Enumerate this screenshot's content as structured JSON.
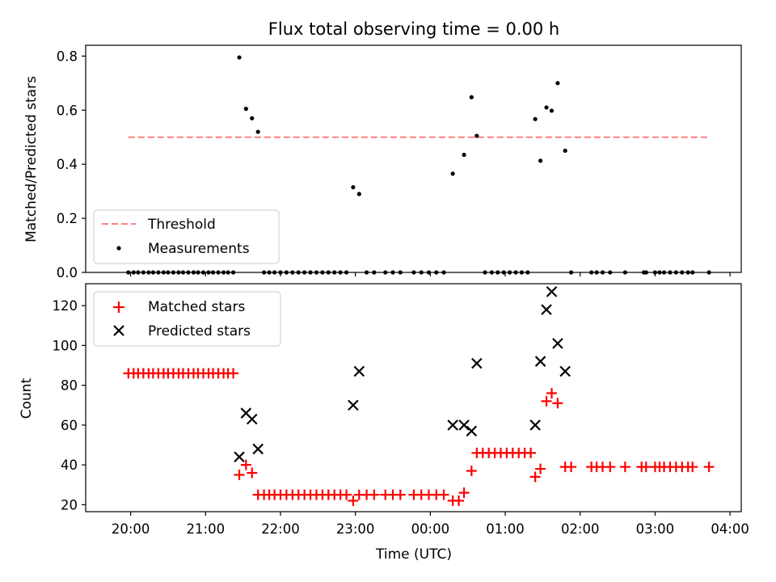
{
  "title": "Flux total observing time = 0.00 h",
  "chart_data": [
    {
      "type": "scatter",
      "ylabel": "Matched/Predicted stars",
      "xlim": [
        -0.6,
        8.15
      ],
      "ylim": [
        0,
        0.84
      ],
      "x_ticks": [
        0,
        1,
        2,
        3,
        4,
        5,
        6,
        7,
        8
      ],
      "y_ticks": [
        {
          "value": 0.0,
          "label": "0.0"
        },
        {
          "value": 0.2,
          "label": "0.2"
        },
        {
          "value": 0.4,
          "label": "0.4"
        },
        {
          "value": 0.6,
          "label": "0.6"
        },
        {
          "value": 0.8,
          "label": "0.8"
        }
      ],
      "legend_position": "lower-left",
      "threshold": {
        "name": "Threshold",
        "value": 0.5,
        "x_range": [
          -0.03,
          7.72
        ],
        "color": "#ff7f7f",
        "style": "dashed"
      },
      "series": [
        {
          "name": "Measurements",
          "color": "#000000",
          "marker": "dot",
          "points": [
            [
              -0.03,
              0
            ],
            [
              0.04,
              0
            ],
            [
              0.1,
              0
            ],
            [
              0.17,
              0
            ],
            [
              0.24,
              0
            ],
            [
              0.3,
              0
            ],
            [
              0.37,
              0
            ],
            [
              0.44,
              0
            ],
            [
              0.5,
              0
            ],
            [
              0.57,
              0
            ],
            [
              0.64,
              0
            ],
            [
              0.7,
              0
            ],
            [
              0.77,
              0
            ],
            [
              0.84,
              0
            ],
            [
              0.9,
              0
            ],
            [
              0.97,
              0
            ],
            [
              1.04,
              0
            ],
            [
              1.1,
              0
            ],
            [
              1.17,
              0
            ],
            [
              1.24,
              0
            ],
            [
              1.3,
              0
            ],
            [
              1.37,
              0
            ],
            [
              1.45,
              0.795
            ],
            [
              1.54,
              0.605
            ],
            [
              1.62,
              0.57
            ],
            [
              1.7,
              0.52
            ],
            [
              1.78,
              0
            ],
            [
              1.85,
              0
            ],
            [
              1.92,
              0
            ],
            [
              2.0,
              0
            ],
            [
              2.08,
              0
            ],
            [
              2.16,
              0
            ],
            [
              2.24,
              0
            ],
            [
              2.32,
              0
            ],
            [
              2.4,
              0
            ],
            [
              2.48,
              0
            ],
            [
              2.56,
              0
            ],
            [
              2.64,
              0
            ],
            [
              2.72,
              0
            ],
            [
              2.8,
              0
            ],
            [
              2.88,
              0
            ],
            [
              2.97,
              0.315
            ],
            [
              3.05,
              0.29
            ],
            [
              3.15,
              0
            ],
            [
              3.25,
              0
            ],
            [
              3.4,
              0
            ],
            [
              3.5,
              0
            ],
            [
              3.6,
              0
            ],
            [
              3.78,
              0
            ],
            [
              3.88,
              0
            ],
            [
              3.98,
              0
            ],
            [
              4.08,
              0
            ],
            [
              4.18,
              0
            ],
            [
              4.3,
              0.365
            ],
            [
              4.45,
              0.435
            ],
            [
              4.55,
              0.648
            ],
            [
              4.62,
              0.505
            ],
            [
              4.73,
              0
            ],
            [
              4.82,
              0
            ],
            [
              4.9,
              0
            ],
            [
              4.98,
              0
            ],
            [
              5.06,
              0
            ],
            [
              5.14,
              0
            ],
            [
              5.22,
              0
            ],
            [
              5.3,
              0
            ],
            [
              5.4,
              0.567
            ],
            [
              5.47,
              0.413
            ],
            [
              5.55,
              0.61
            ],
            [
              5.62,
              0.598
            ],
            [
              5.7,
              0.7
            ],
            [
              5.8,
              0.45
            ],
            [
              5.88,
              0
            ],
            [
              6.15,
              0
            ],
            [
              6.22,
              0
            ],
            [
              6.3,
              0
            ],
            [
              6.4,
              0
            ],
            [
              6.6,
              0
            ],
            [
              6.85,
              0
            ],
            [
              6.88,
              0
            ],
            [
              7.0,
              0
            ],
            [
              7.06,
              0
            ],
            [
              7.12,
              0
            ],
            [
              7.2,
              0
            ],
            [
              7.28,
              0
            ],
            [
              7.36,
              0
            ],
            [
              7.44,
              0
            ],
            [
              7.5,
              0
            ],
            [
              7.72,
              0
            ]
          ]
        }
      ]
    },
    {
      "type": "scatter",
      "xlabel": "Time (UTC)",
      "ylabel": "Count",
      "xlim": [
        -0.6,
        8.15
      ],
      "ylim": [
        16.5,
        131
      ],
      "x_ticks": [
        {
          "value": 0,
          "label": "20:00"
        },
        {
          "value": 1,
          "label": "21:00"
        },
        {
          "value": 2,
          "label": "22:00"
        },
        {
          "value": 3,
          "label": "23:00"
        },
        {
          "value": 4,
          "label": "00:00"
        },
        {
          "value": 5,
          "label": "01:00"
        },
        {
          "value": 6,
          "label": "02:00"
        },
        {
          "value": 7,
          "label": "03:00"
        },
        {
          "value": 8,
          "label": "04:00"
        }
      ],
      "y_ticks": [
        {
          "value": 20,
          "label": "20"
        },
        {
          "value": 40,
          "label": "40"
        },
        {
          "value": 60,
          "label": "60"
        },
        {
          "value": 80,
          "label": "80"
        },
        {
          "value": 100,
          "label": "100"
        },
        {
          "value": 120,
          "label": "120"
        }
      ],
      "legend_position": "upper-left",
      "series": [
        {
          "name": "Matched stars",
          "color": "#ff0000",
          "marker": "plus",
          "points": [
            [
              -0.03,
              86
            ],
            [
              0.04,
              86
            ],
            [
              0.1,
              86
            ],
            [
              0.17,
              86
            ],
            [
              0.24,
              86
            ],
            [
              0.3,
              86
            ],
            [
              0.37,
              86
            ],
            [
              0.44,
              86
            ],
            [
              0.5,
              86
            ],
            [
              0.57,
              86
            ],
            [
              0.64,
              86
            ],
            [
              0.7,
              86
            ],
            [
              0.77,
              86
            ],
            [
              0.84,
              86
            ],
            [
              0.9,
              86
            ],
            [
              0.97,
              86
            ],
            [
              1.04,
              86
            ],
            [
              1.1,
              86
            ],
            [
              1.17,
              86
            ],
            [
              1.24,
              86
            ],
            [
              1.3,
              86
            ],
            [
              1.37,
              86
            ],
            [
              1.45,
              35
            ],
            [
              1.54,
              40
            ],
            [
              1.62,
              36
            ],
            [
              1.7,
              25
            ],
            [
              1.78,
              25
            ],
            [
              1.85,
              25
            ],
            [
              1.92,
              25
            ],
            [
              2.0,
              25
            ],
            [
              2.08,
              25
            ],
            [
              2.16,
              25
            ],
            [
              2.24,
              25
            ],
            [
              2.32,
              25
            ],
            [
              2.4,
              25
            ],
            [
              2.48,
              25
            ],
            [
              2.56,
              25
            ],
            [
              2.64,
              25
            ],
            [
              2.72,
              25
            ],
            [
              2.8,
              25
            ],
            [
              2.88,
              25
            ],
            [
              2.97,
              22
            ],
            [
              3.05,
              25
            ],
            [
              3.15,
              25
            ],
            [
              3.25,
              25
            ],
            [
              3.4,
              25
            ],
            [
              3.5,
              25
            ],
            [
              3.6,
              25
            ],
            [
              3.78,
              25
            ],
            [
              3.88,
              25
            ],
            [
              3.98,
              25
            ],
            [
              4.08,
              25
            ],
            [
              4.18,
              25
            ],
            [
              4.3,
              22
            ],
            [
              4.38,
              22
            ],
            [
              4.45,
              26
            ],
            [
              4.55,
              37
            ],
            [
              4.62,
              46
            ],
            [
              4.7,
              46
            ],
            [
              4.78,
              46
            ],
            [
              4.86,
              46
            ],
            [
              4.94,
              46
            ],
            [
              5.02,
              46
            ],
            [
              5.1,
              46
            ],
            [
              5.18,
              46
            ],
            [
              5.26,
              46
            ],
            [
              5.34,
              46
            ],
            [
              5.4,
              34
            ],
            [
              5.47,
              38
            ],
            [
              5.55,
              72
            ],
            [
              5.62,
              76
            ],
            [
              5.7,
              71
            ],
            [
              5.8,
              39
            ],
            [
              5.88,
              39
            ],
            [
              6.15,
              39
            ],
            [
              6.22,
              39
            ],
            [
              6.3,
              39
            ],
            [
              6.4,
              39
            ],
            [
              6.6,
              39
            ],
            [
              6.82,
              39
            ],
            [
              6.88,
              39
            ],
            [
              7.0,
              39
            ],
            [
              7.06,
              39
            ],
            [
              7.12,
              39
            ],
            [
              7.2,
              39
            ],
            [
              7.28,
              39
            ],
            [
              7.36,
              39
            ],
            [
              7.44,
              39
            ],
            [
              7.5,
              39
            ],
            [
              7.72,
              39
            ]
          ]
        },
        {
          "name": "Predicted stars",
          "color": "#000000",
          "marker": "x",
          "points": [
            [
              1.45,
              44
            ],
            [
              1.54,
              66
            ],
            [
              1.62,
              63
            ],
            [
              1.7,
              48
            ],
            [
              2.97,
              70
            ],
            [
              3.05,
              87
            ],
            [
              4.3,
              60
            ],
            [
              4.45,
              60
            ],
            [
              4.55,
              57
            ],
            [
              4.62,
              91
            ],
            [
              5.4,
              60
            ],
            [
              5.47,
              92
            ],
            [
              5.55,
              118
            ],
            [
              5.62,
              127
            ],
            [
              5.7,
              101
            ],
            [
              5.8,
              87
            ]
          ]
        }
      ]
    }
  ]
}
